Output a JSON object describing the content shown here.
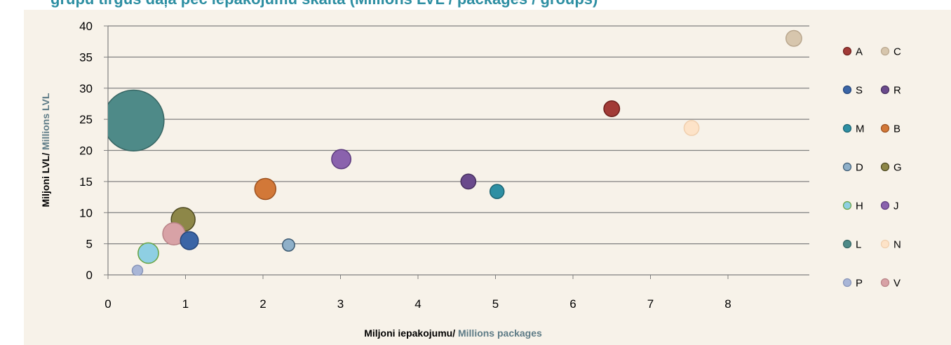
{
  "title_partial": "grupu tirgus daļa pēc iepakojumu skaita (Millions LVL / packages / groups)",
  "chart_data": {
    "type": "scatter",
    "subtype": "bubble",
    "xlabel_main": "Miljoni iepakojumu/",
    "xlabel_secondary": " Millions packages",
    "ylabel_main": "Miljoni LVL/",
    "ylabel_secondary": " Millions LVL",
    "xlim": [
      0,
      9
    ],
    "ylim": [
      0,
      40
    ],
    "x_ticks": [
      0,
      1,
      2,
      3,
      4,
      5,
      6,
      7,
      8
    ],
    "y_ticks": [
      0,
      5,
      10,
      15,
      20,
      25,
      30,
      35,
      40
    ],
    "grid": "horizontal",
    "legend_position": "right",
    "series": [
      {
        "name": "A",
        "x": 6.5,
        "y": 26.7,
        "size": 1.0,
        "color": "#a23b37",
        "edge": "#6e1f1c"
      },
      {
        "name": "C",
        "x": 8.85,
        "y": 38.0,
        "size": 1.0,
        "color": "#d7c6ad",
        "edge": "#b9a78e"
      },
      {
        "name": "S",
        "x": 1.05,
        "y": 5.5,
        "size": 1.3,
        "color": "#3b65a6",
        "edge": "#24457a"
      },
      {
        "name": "R",
        "x": 4.65,
        "y": 15.0,
        "size": 0.9,
        "color": "#6a4a8c",
        "edge": "#47305f"
      },
      {
        "name": "M",
        "x": 5.02,
        "y": 13.4,
        "size": 0.8,
        "color": "#2e8fa3",
        "edge": "#1c6472"
      },
      {
        "name": "B",
        "x": 2.03,
        "y": 13.8,
        "size": 1.8,
        "color": "#d27838",
        "edge": "#9c5220"
      },
      {
        "name": "D",
        "x": 2.33,
        "y": 4.8,
        "size": 0.6,
        "color": "#8fb0c9",
        "edge": "#3c5a72"
      },
      {
        "name": "G",
        "x": 0.97,
        "y": 8.9,
        "size": 2.3,
        "color": "#8d8748",
        "edge": "#4c4820"
      },
      {
        "name": "H",
        "x": 0.52,
        "y": 3.5,
        "size": 1.7,
        "color": "#8ecfe3",
        "edge": "#67a341"
      },
      {
        "name": "J",
        "x": 3.01,
        "y": 18.6,
        "size": 1.5,
        "color": "#8a62ad",
        "edge": "#5d3c7e"
      },
      {
        "name": "L",
        "x": 0.33,
        "y": 24.8,
        "size": 15.0,
        "color": "#4e8a88",
        "edge": "#366563"
      },
      {
        "name": "N",
        "x": 7.53,
        "y": 23.6,
        "size": 0.9,
        "color": "#fde3c8",
        "edge": "#f0cfae"
      },
      {
        "name": "P",
        "x": 0.38,
        "y": 0.7,
        "size": 0.45,
        "color": "#a9b6d7",
        "edge": "#8794b8"
      },
      {
        "name": "V",
        "x": 0.85,
        "y": 6.6,
        "size": 2.0,
        "color": "#d8a2a6",
        "edge": "#b88286"
      }
    ],
    "legend_order": [
      "A",
      "C",
      "S",
      "R",
      "M",
      "B",
      "D",
      "G",
      "H",
      "J",
      "L",
      "N",
      "P",
      "V"
    ]
  },
  "colors": {
    "background": "#f7f2e9",
    "grid": "#808080",
    "secondary_text": "#5d7b86"
  }
}
